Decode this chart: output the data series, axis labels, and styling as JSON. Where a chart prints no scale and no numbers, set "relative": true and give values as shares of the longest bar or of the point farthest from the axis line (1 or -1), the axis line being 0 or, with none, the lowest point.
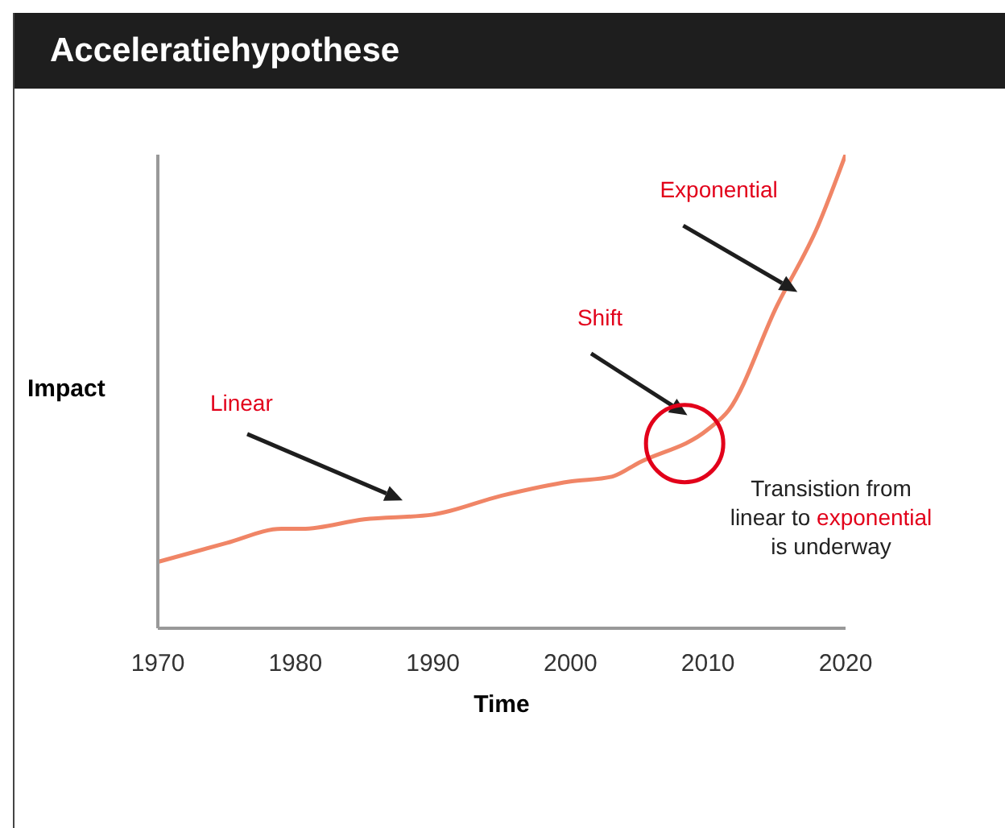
{
  "chart_data": {
    "type": "line",
    "title": "Acceleratiehypothese",
    "xlabel": "Time",
    "ylabel": "Impact",
    "relative": true,
    "x": [
      1970,
      1975,
      1979,
      1980.5,
      1985,
      1990,
      1995,
      2000,
      2003,
      2005,
      2010,
      2011.5,
      2015,
      2018,
      2020
    ],
    "series": [
      {
        "color": "#f08566",
        "values": [
          0.14,
          0.18,
          0.21,
          0.21,
          0.23,
          0.24,
          0.28,
          0.31,
          0.32,
          0.35,
          0.42,
          0.46,
          0.68,
          0.85,
          1.0
        ]
      }
    ],
    "xlim": [
      1970,
      2020
    ],
    "xticks": [
      1970,
      1980,
      1990,
      2000,
      2010,
      2020
    ],
    "annotations": [
      "Linear",
      "Shift",
      "Exponential",
      "Transistion from linear to exponential is underway"
    ]
  }
}
